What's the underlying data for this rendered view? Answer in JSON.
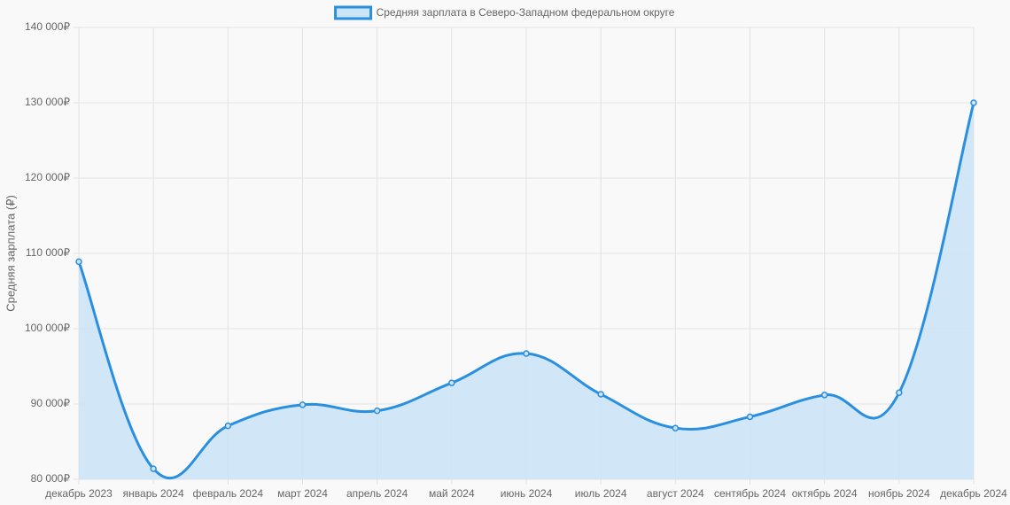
{
  "chart_data": {
    "type": "line",
    "legend_position": "top",
    "y_label": "Средняя зарплата (₽)",
    "categories": [
      "декабрь 2023",
      "январь 2024",
      "февраль 2024",
      "март 2024",
      "апрель 2024",
      "май 2024",
      "июнь 2024",
      "июль 2024",
      "август 2024",
      "сентябрь 2024",
      "октябрь 2024",
      "ноябрь 2024",
      "декабрь 2024"
    ],
    "series": [
      {
        "name": "Средняя зарплата в Северо-Западном федеральном округе",
        "color": "#2b8fe0",
        "fill": "#cce4f7",
        "values": [
          108900,
          81400,
          87100,
          89900,
          89100,
          92800,
          96700,
          91300,
          86800,
          88300,
          91200,
          91500,
          130000
        ]
      }
    ],
    "ylim": [
      80000,
      140000
    ],
    "yticks": [
      {
        "value": 80000,
        "label": "80 000₽"
      },
      {
        "value": 90000,
        "label": "90 000₽"
      },
      {
        "value": 100000,
        "label": "100 000₽"
      },
      {
        "value": 110000,
        "label": "110 000₽"
      },
      {
        "value": 120000,
        "label": "120 000₽"
      },
      {
        "value": 130000,
        "label": "130 000₽"
      },
      {
        "value": 140000,
        "label": "140 000₽"
      }
    ],
    "grid": true
  }
}
